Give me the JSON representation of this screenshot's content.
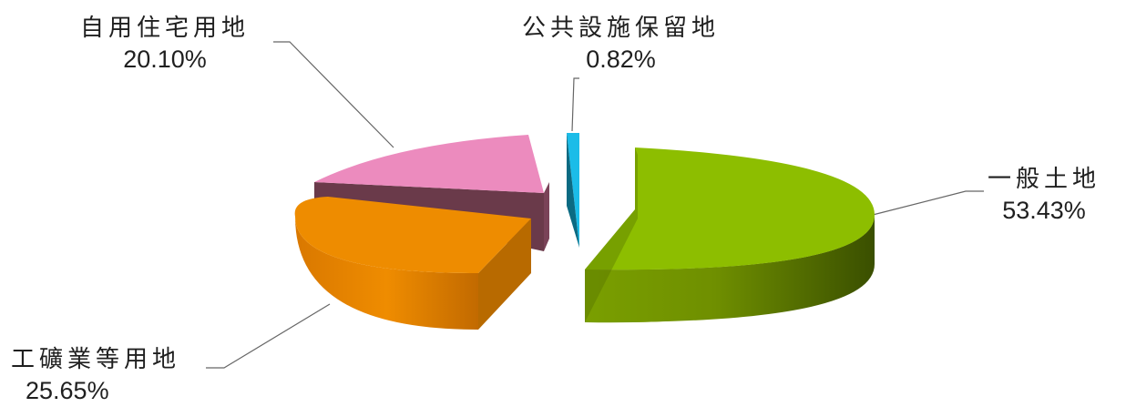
{
  "chart_data": {
    "type": "pie",
    "style": "3d-exploded",
    "title": "",
    "slices": [
      {
        "name": "一般土地",
        "value": 53.43,
        "value_label": "53.43%",
        "color": "#8DBE00"
      },
      {
        "name": "公共設施保留地",
        "value": 0.82,
        "value_label": "0.82%",
        "color": "#1BBCE8"
      },
      {
        "name": "自用住宅用地",
        "value": 20.1,
        "value_label": "20.10%",
        "color": "#EC8BBE"
      },
      {
        "name": "工礦業等用地",
        "value": 25.65,
        "value_label": "25.65%",
        "color": "#EE8C00"
      }
    ],
    "legend": "none",
    "data_labels": "outside with leader lines"
  }
}
